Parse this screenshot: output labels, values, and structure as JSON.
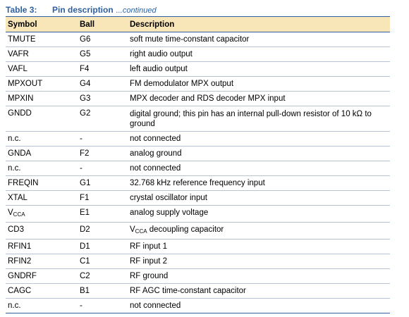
{
  "table": {
    "number": "Table 3:",
    "title": "Pin description",
    "continued": "...continued",
    "headers": {
      "symbol": "Symbol",
      "ball": "Ball",
      "description": "Description"
    },
    "rows": [
      {
        "symbol": "TMUTE",
        "ball": "G6",
        "description": "soft mute time-constant capacitor"
      },
      {
        "symbol": "VAFR",
        "ball": "G5",
        "description": "right audio output"
      },
      {
        "symbol": "VAFL",
        "ball": "F4",
        "description": "left audio output"
      },
      {
        "symbol": "MPXOUT",
        "ball": "G4",
        "description": "FM demodulator MPX output"
      },
      {
        "symbol": "MPXIN",
        "ball": "G3",
        "description": "MPX decoder and RDS decoder MPX input"
      },
      {
        "symbol": "GNDD",
        "ball": "G2",
        "description": "digital ground; this pin has an internal pull-down resistor of 10 kΩ to ground"
      },
      {
        "symbol": "n.c.",
        "ball": "-",
        "description": "not connected"
      },
      {
        "symbol": "GNDA",
        "ball": "F2",
        "description": "analog ground"
      },
      {
        "symbol": "n.c.",
        "ball": "-",
        "description": "not connected"
      },
      {
        "symbol": "FREQIN",
        "ball": "G1",
        "description": "32.768 kHz reference frequency input"
      },
      {
        "symbol": "XTAL",
        "ball": "F1",
        "description": "crystal oscillator input"
      },
      {
        "symbol_main": "V",
        "symbol_sub": "CCA",
        "ball": "E1",
        "description": "analog supply voltage"
      },
      {
        "symbol": "CD3",
        "ball": "D2",
        "description_main": "V",
        "description_sub": "CCA",
        "description_rest": " decoupling capacitor"
      },
      {
        "symbol": "RFIN1",
        "ball": "D1",
        "description": "RF input 1"
      },
      {
        "symbol": "RFIN2",
        "ball": "C1",
        "description": "RF input 2"
      },
      {
        "symbol": "GNDRF",
        "ball": "C2",
        "description": "RF ground"
      },
      {
        "symbol": "CAGC",
        "ball": "B1",
        "description": "RF AGC time-constant capacitor"
      },
      {
        "symbol": "n.c.",
        "ball": "-",
        "description": "not connected"
      }
    ]
  },
  "colors": {
    "header_fill": "#f8e6b9",
    "rule": "#2f5f9e",
    "row_rule": "#b8c4d4",
    "caption": "#2f5f9e"
  }
}
